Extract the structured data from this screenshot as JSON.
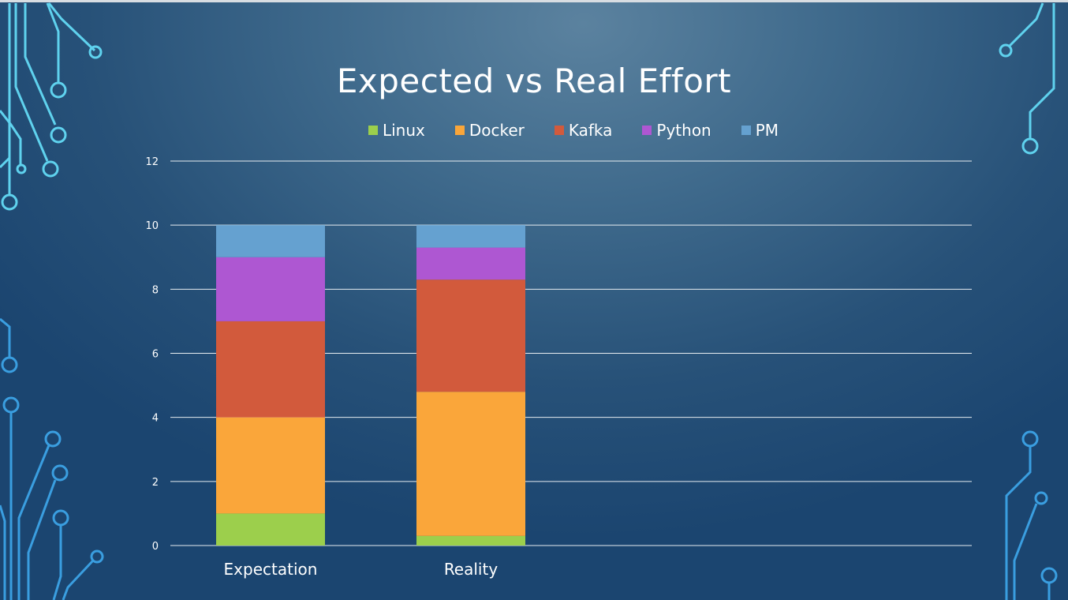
{
  "chart_data": {
    "type": "bar",
    "stacked": true,
    "title": "Expected vs Real Effort",
    "categories": [
      "Expectation",
      "Reality"
    ],
    "series": [
      {
        "name": "Linux",
        "color": "#9ccf4c",
        "values": [
          1,
          0.3
        ]
      },
      {
        "name": "Docker",
        "color": "#faa63a",
        "values": [
          3,
          4.5
        ]
      },
      {
        "name": "Kafka",
        "color": "#d25a3c",
        "values": [
          3,
          3.5
        ]
      },
      {
        "name": "Python",
        "color": "#ae57d2",
        "values": [
          2,
          1
        ]
      },
      {
        "name": "PM",
        "color": "#65a1d0",
        "values": [
          1,
          0.7
        ]
      }
    ],
    "ylim": [
      0,
      12
    ],
    "yticks": [
      "0",
      "2",
      "4",
      "6",
      "8",
      "10",
      "12"
    ],
    "grid": true,
    "legend_position": "top"
  }
}
